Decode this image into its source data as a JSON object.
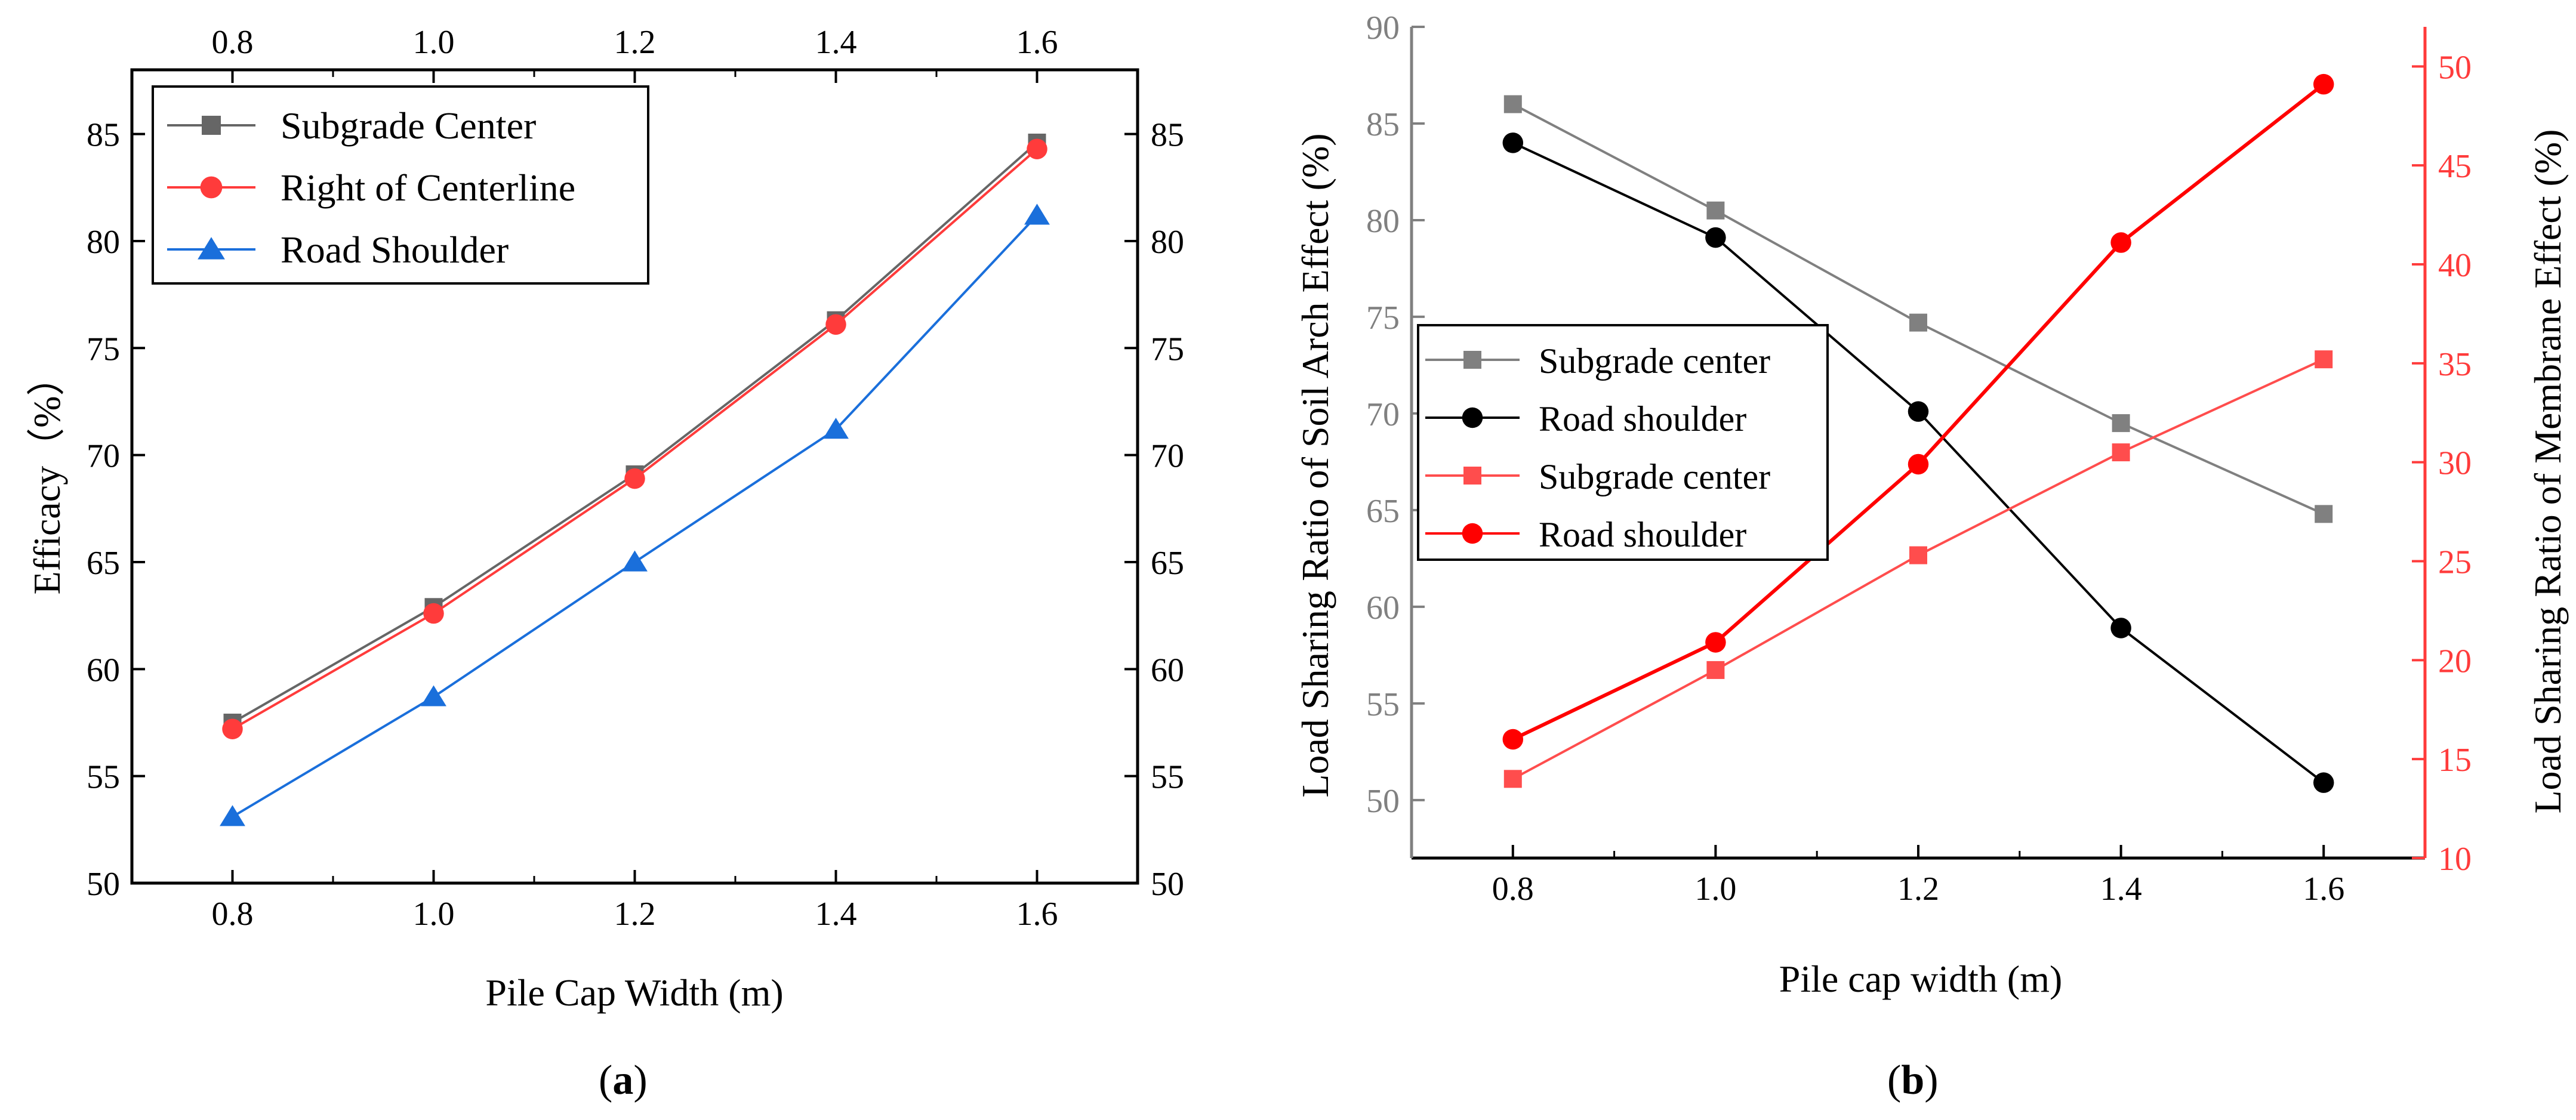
{
  "chart_data": [
    {
      "type": "line",
      "panel_label": "a",
      "title": "",
      "xlabel": "Pile Cap Width (m)",
      "ylabel": "Efficacy（%）",
      "x": [
        0.8,
        1.0,
        1.2,
        1.4,
        1.6
      ],
      "x_tick_labels": [
        "0.8",
        "1.0",
        "1.2",
        "1.4",
        "1.6"
      ],
      "xlim": [
        0.7,
        1.7
      ],
      "ylim": [
        50,
        88
      ],
      "y_ticks": [
        50,
        55,
        60,
        65,
        70,
        75,
        80,
        85
      ],
      "y_tick_labels": [
        "50",
        "55",
        "60",
        "65",
        "70",
        "75",
        "80",
        "85"
      ],
      "mirror_axes": "top and right",
      "grid": false,
      "legend_position": "top-left",
      "series": [
        {
          "name": "Subgrade Center",
          "values": [
            57.5,
            62.9,
            69.1,
            76.3,
            84.6
          ],
          "color": "#666666",
          "marker": "square",
          "axis": "left"
        },
        {
          "name": "Right of Centerline",
          "values": [
            57.2,
            62.6,
            68.9,
            76.1,
            84.3
          ],
          "color": "#ff3b3b",
          "marker": "circle",
          "axis": "left"
        },
        {
          "name": "Road Shoulder",
          "values": [
            53.1,
            58.7,
            65.0,
            71.2,
            81.2
          ],
          "color": "#1a6fdb",
          "marker": "triangle",
          "axis": "left"
        }
      ]
    },
    {
      "type": "line",
      "panel_label": "b",
      "title": "",
      "xlabel": "Pile cap width (m)",
      "ylabel": "Load Sharing Ratio of Soil Arch Effect (%)",
      "ylabel_right": "Load Sharing Ratio of Membrane Effect (%)",
      "x": [
        0.8,
        1.0,
        1.2,
        1.4,
        1.6
      ],
      "x_tick_labels": [
        "0.8",
        "1.0",
        "1.2",
        "1.4",
        "1.6"
      ],
      "xlim": [
        0.7,
        1.7
      ],
      "ylim": [
        47,
        90
      ],
      "y_ticks": [
        50,
        55,
        60,
        65,
        70,
        75,
        80,
        85,
        90
      ],
      "y_tick_labels": [
        "50",
        "55",
        "60",
        "65",
        "70",
        "75",
        "80",
        "85",
        "90"
      ],
      "ylim_right": [
        10,
        52
      ],
      "y_ticks_right": [
        10,
        15,
        20,
        25,
        30,
        35,
        40,
        45,
        50
      ],
      "y_tick_labels_right": [
        "10",
        "15",
        "20",
        "25",
        "30",
        "35",
        "40",
        "45",
        "50"
      ],
      "left_axis_color": "#808080",
      "right_axis_color": "#ff3b3b",
      "grid": false,
      "legend_position": "middle-left",
      "series": [
        {
          "name": "Subgrade center",
          "values": [
            86.0,
            80.5,
            74.7,
            69.5,
            64.8
          ],
          "color": "#808080",
          "marker": "square",
          "axis": "left"
        },
        {
          "name": "Road shoulder",
          "values": [
            84.0,
            79.1,
            70.1,
            58.9,
            50.9
          ],
          "color": "#000000",
          "marker": "circle",
          "axis": "left"
        },
        {
          "name": "Subgrade center",
          "values": [
            14.0,
            19.5,
            25.3,
            30.5,
            35.2
          ],
          "color": "#ff4d4d",
          "marker": "square",
          "axis": "right"
        },
        {
          "name": "Road shoulder",
          "values": [
            16.0,
            20.9,
            29.9,
            41.1,
            49.1
          ],
          "color": "#ff0000",
          "marker": "circle",
          "axis": "right"
        }
      ]
    }
  ]
}
